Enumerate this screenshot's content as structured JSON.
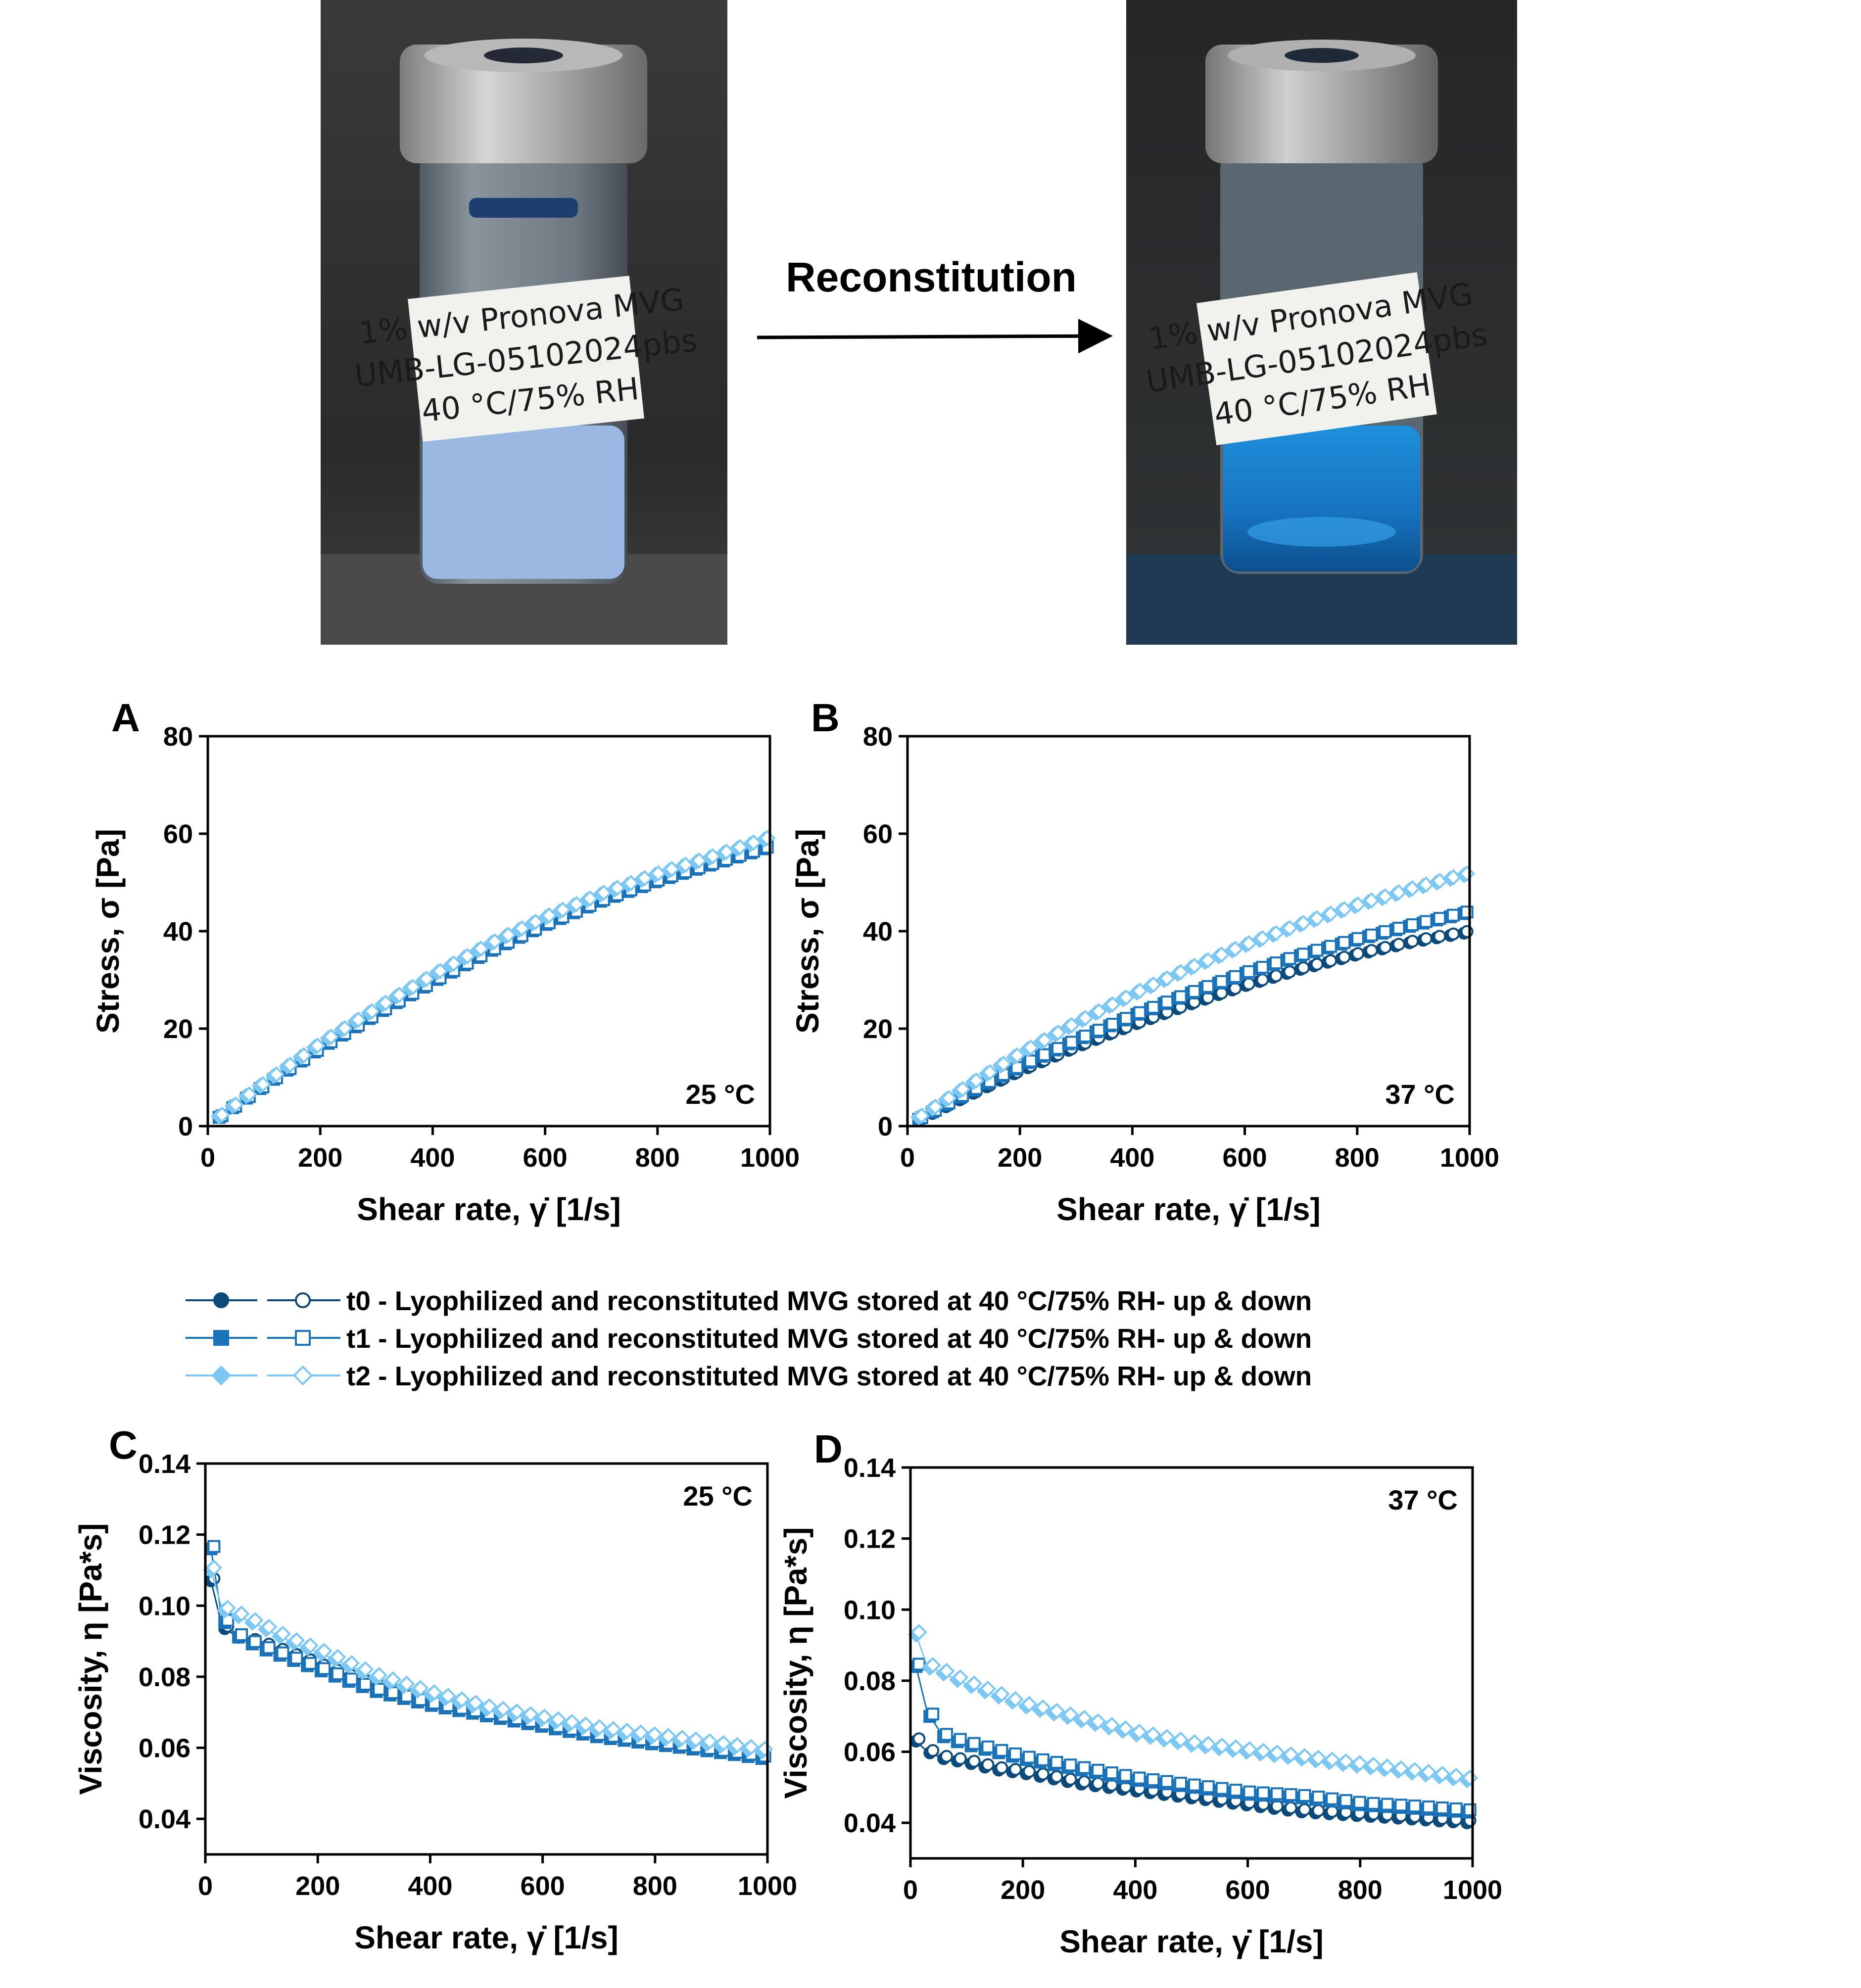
{
  "photos": {
    "vial_label_lines": [
      "1% w/v Pronova MVG",
      "UMB-LG-05102024pbs",
      "40 °C/75% RH"
    ],
    "arrow_label": "Reconstitution"
  },
  "colors": {
    "t0": "#0b4a7a",
    "t1": "#1a72b8",
    "t2": "#7cc8f2"
  },
  "legend": [
    {
      "key": "t0",
      "marker": "circle",
      "label": "t0 - Lyophilized and reconstituted MVG stored at 40 °C/75% RH- up & down"
    },
    {
      "key": "t1",
      "marker": "square",
      "label": "t1 - Lyophilized and reconstituted MVG stored at 40 °C/75% RH- up & down"
    },
    {
      "key": "t2",
      "marker": "diamond",
      "label": "t2 - Lyophilized and reconstituted MVG stored at 40 °C/75% RH- up & down"
    }
  ],
  "chart_data": [
    {
      "panel": "A",
      "type": "scatter",
      "temperature": "25 °C",
      "xlabel": "Shear rate, γ̇ [1/s]",
      "ylabel": "Stress, σ [Pa]",
      "xlim": [
        0,
        1000
      ],
      "ylim": [
        0,
        80
      ],
      "xticks": [
        0,
        200,
        400,
        600,
        800,
        1000
      ],
      "yticks": [
        0,
        20,
        40,
        60,
        80
      ],
      "series": [
        {
          "key": "t0",
          "x": [
            20,
            100,
            200,
            300,
            400,
            500,
            600,
            700,
            800,
            900,
            990
          ],
          "y": [
            1.9,
            8.6,
            16.5,
            23.5,
            30.2,
            36.6,
            42.1,
            46.9,
            51.0,
            54.5,
            58.0
          ]
        },
        {
          "key": "t1",
          "x": [
            20,
            100,
            200,
            300,
            400,
            500,
            600,
            700,
            800,
            900,
            990
          ],
          "y": [
            1.8,
            8.3,
            16.0,
            23.0,
            29.6,
            35.8,
            41.3,
            46.2,
            50.3,
            53.8,
            56.9
          ]
        },
        {
          "key": "t2",
          "x": [
            20,
            100,
            200,
            300,
            400,
            500,
            600,
            700,
            800,
            900,
            990
          ],
          "y": [
            2.0,
            8.9,
            17.0,
            24.2,
            31.0,
            37.3,
            42.8,
            47.6,
            51.7,
            55.3,
            58.8
          ]
        }
      ]
    },
    {
      "panel": "B",
      "type": "scatter",
      "temperature": "37 °C",
      "xlabel": "Shear rate, γ̇ [1/s]",
      "ylabel": "Stress, σ [Pa]",
      "xlim": [
        0,
        1000
      ],
      "ylim": [
        0,
        80
      ],
      "xticks": [
        0,
        200,
        400,
        600,
        800,
        1000
      ],
      "yticks": [
        0,
        20,
        40,
        60,
        80
      ],
      "series": [
        {
          "key": "t0",
          "x": [
            20,
            100,
            200,
            300,
            400,
            500,
            600,
            700,
            800,
            900,
            990
          ],
          "y": [
            1.2,
            5.8,
            11.3,
            16.2,
            20.7,
            24.9,
            28.8,
            32.2,
            35.2,
            37.8,
            39.6
          ]
        },
        {
          "key": "t1",
          "x": [
            20,
            100,
            200,
            300,
            400,
            500,
            600,
            700,
            800,
            900,
            990
          ],
          "y": [
            1.4,
            6.4,
            12.3,
            17.6,
            22.6,
            27.1,
            31.3,
            35.0,
            38.3,
            41.2,
            43.6
          ]
        },
        {
          "key": "t2",
          "x": [
            20,
            100,
            200,
            300,
            400,
            500,
            600,
            700,
            800,
            900,
            990
          ],
          "y": [
            1.8,
            7.8,
            14.9,
            21.2,
            27.0,
            32.3,
            37.1,
            41.4,
            45.3,
            48.7,
            51.5
          ]
        }
      ]
    },
    {
      "panel": "C",
      "type": "scatter",
      "temperature": "25 °C",
      "xlabel": "Shear rate, γ̇ [1/s]",
      "ylabel": "Viscosity, η [Pa*s]",
      "xlim": [
        0,
        1000
      ],
      "ylim": [
        0.03,
        0.14
      ],
      "xticks": [
        0,
        200,
        400,
        600,
        800,
        1000
      ],
      "yticks": [
        0.04,
        0.06,
        0.08,
        0.1,
        0.12,
        0.14
      ],
      "series": [
        {
          "key": "t0",
          "x": [
            10,
            30,
            60,
            100,
            150,
            200,
            300,
            400,
            500,
            600,
            700,
            800,
            900,
            990
          ],
          "y": [
            0.107,
            0.094,
            0.091,
            0.089,
            0.086,
            0.083,
            0.077,
            0.073,
            0.069,
            0.066,
            0.064,
            0.061,
            0.059,
            0.058
          ]
        },
        {
          "key": "t1",
          "x": [
            10,
            30,
            60,
            100,
            150,
            200,
            300,
            400,
            500,
            600,
            700,
            800,
            900,
            990
          ],
          "y": [
            0.116,
            0.096,
            0.091,
            0.088,
            0.085,
            0.082,
            0.076,
            0.072,
            0.069,
            0.066,
            0.063,
            0.061,
            0.059,
            0.057
          ]
        },
        {
          "key": "t2",
          "x": [
            10,
            30,
            60,
            100,
            150,
            200,
            300,
            400,
            500,
            600,
            700,
            800,
            900,
            990
          ],
          "y": [
            0.11,
            0.099,
            0.097,
            0.094,
            0.09,
            0.087,
            0.08,
            0.075,
            0.071,
            0.068,
            0.065,
            0.063,
            0.061,
            0.059
          ]
        }
      ]
    },
    {
      "panel": "D",
      "type": "scatter",
      "temperature": "37 °C",
      "xlabel": "Shear rate, γ̇ [1/s]",
      "ylabel": "Viscosity, η [Pa*s]",
      "xlim": [
        0,
        1000
      ],
      "ylim": [
        0.03,
        0.14
      ],
      "xticks": [
        0,
        200,
        400,
        600,
        800,
        1000
      ],
      "yticks": [
        0.04,
        0.06,
        0.08,
        0.1,
        0.12,
        0.14
      ],
      "series": [
        {
          "key": "t0",
          "x": [
            10,
            30,
            60,
            100,
            150,
            200,
            300,
            400,
            500,
            600,
            700,
            800,
            900,
            990
          ],
          "y": [
            0.063,
            0.06,
            0.058,
            0.057,
            0.055,
            0.054,
            0.051,
            0.049,
            0.047,
            0.045,
            0.043,
            0.042,
            0.041,
            0.04
          ]
        },
        {
          "key": "t1",
          "x": [
            10,
            30,
            60,
            100,
            150,
            200,
            300,
            400,
            500,
            600,
            700,
            800,
            900,
            990
          ],
          "y": [
            0.084,
            0.071,
            0.064,
            0.062,
            0.06,
            0.058,
            0.055,
            0.052,
            0.05,
            0.048,
            0.047,
            0.045,
            0.044,
            0.043
          ]
        },
        {
          "key": "t2",
          "x": [
            10,
            30,
            60,
            100,
            150,
            200,
            300,
            400,
            500,
            600,
            700,
            800,
            900,
            990
          ],
          "y": [
            0.093,
            0.084,
            0.082,
            0.079,
            0.076,
            0.073,
            0.069,
            0.065,
            0.062,
            0.06,
            0.058,
            0.056,
            0.054,
            0.052
          ]
        }
      ]
    }
  ]
}
